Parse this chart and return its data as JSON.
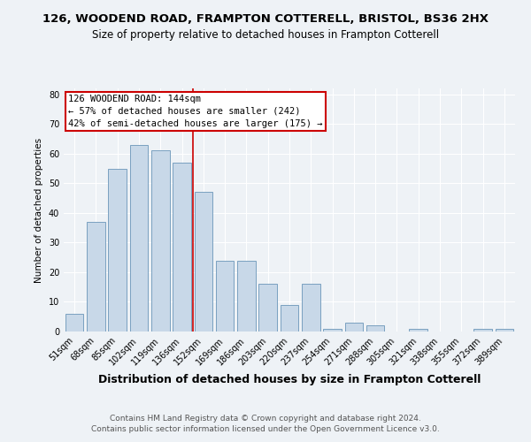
{
  "title1": "126, WOODEND ROAD, FRAMPTON COTTERELL, BRISTOL, BS36 2HX",
  "title2": "Size of property relative to detached houses in Frampton Cotterell",
  "xlabel": "Distribution of detached houses by size in Frampton Cotterell",
  "ylabel": "Number of detached properties",
  "categories": [
    "51sqm",
    "68sqm",
    "85sqm",
    "102sqm",
    "119sqm",
    "136sqm",
    "152sqm",
    "169sqm",
    "186sqm",
    "203sqm",
    "220sqm",
    "237sqm",
    "254sqm",
    "271sqm",
    "288sqm",
    "305sqm",
    "321sqm",
    "338sqm",
    "355sqm",
    "372sqm",
    "389sqm"
  ],
  "values": [
    6,
    37,
    55,
    63,
    61,
    57,
    47,
    24,
    24,
    16,
    9,
    16,
    1,
    3,
    2,
    0,
    1,
    0,
    0,
    1,
    1
  ],
  "bar_color": "#c8d8e8",
  "bar_edge_color": "#7aa0c0",
  "vline_x": 5.5,
  "vline_color": "#cc0000",
  "annotation_lines": [
    "126 WOODEND ROAD: 144sqm",
    "← 57% of detached houses are smaller (242)",
    "42% of semi-detached houses are larger (175) →"
  ],
  "annotation_box_color": "#cc0000",
  "ylim": [
    0,
    82
  ],
  "yticks": [
    0,
    10,
    20,
    30,
    40,
    50,
    60,
    70,
    80
  ],
  "footer1": "Contains HM Land Registry data © Crown copyright and database right 2024.",
  "footer2": "Contains public sector information licensed under the Open Government Licence v3.0.",
  "bg_color": "#eef2f6",
  "plot_bg_color": "#eef2f6",
  "grid_color": "#ffffff",
  "title1_fontsize": 9.5,
  "title2_fontsize": 8.5,
  "xlabel_fontsize": 9,
  "ylabel_fontsize": 7.5,
  "tick_fontsize": 7,
  "footer_fontsize": 6.5,
  "ann_fontsize": 7.5
}
